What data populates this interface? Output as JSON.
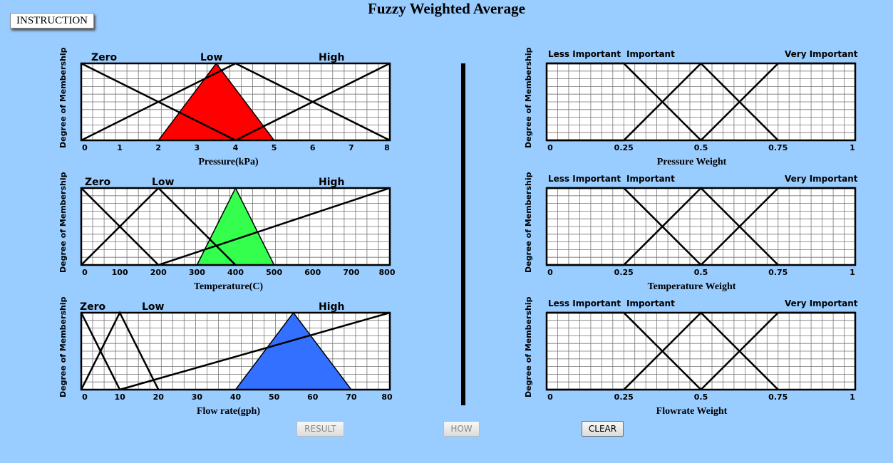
{
  "title": "Fuzzy Weighted Average",
  "instruction_label": "INSTRUCTION",
  "ylabel": "Degree of Membership",
  "buttons": {
    "result": "RESULT",
    "how": "HOW",
    "clear": "CLEAR"
  },
  "colors": {
    "background": "#99ccff",
    "pressure": "#ff0000",
    "temperature": "#33ff4c",
    "flow": "#3370ff"
  },
  "inputs": [
    {
      "xlabel": "Pressure(kPa)",
      "sets": [
        "Zero",
        "Low",
        "High"
      ],
      "ticks": [
        "0",
        "1",
        "2",
        "3",
        "4",
        "5",
        "6",
        "7",
        "8"
      ],
      "fill": "#ff0000"
    },
    {
      "xlabel": "Temperature(C)",
      "sets": [
        "Zero",
        "Low",
        "High"
      ],
      "ticks": [
        "0",
        "100",
        "200",
        "300",
        "400",
        "500",
        "600",
        "700",
        "800"
      ],
      "fill": "#33ff4c"
    },
    {
      "xlabel": "Flow rate(gph)",
      "sets": [
        "Zero",
        "Low",
        "High"
      ],
      "ticks": [
        "0",
        "10",
        "20",
        "30",
        "40",
        "50",
        "60",
        "70",
        "80"
      ],
      "fill": "#3370ff"
    }
  ],
  "weights": [
    {
      "xlabel": "Pressure Weight",
      "sets": [
        "Less Important",
        "Important",
        "Very Important"
      ],
      "ticks": [
        "0",
        "0.25",
        "0.5",
        "0.75",
        "1"
      ]
    },
    {
      "xlabel": "Temperature Weight",
      "sets": [
        "Less Important",
        "Important",
        "Very Important"
      ],
      "ticks": [
        "0",
        "0.25",
        "0.5",
        "0.75",
        "1"
      ]
    },
    {
      "xlabel": "Flowrate Weight",
      "sets": [
        "Less Important",
        "Important",
        "Very Important"
      ],
      "ticks": [
        "0",
        "0.25",
        "0.5",
        "0.75",
        "1"
      ]
    }
  ],
  "chart_data": [
    {
      "type": "line",
      "xlabel": "Pressure(kPa)",
      "ylabel": "Degree of Membership",
      "xlim": [
        0,
        8
      ],
      "ylim": [
        0,
        1
      ],
      "grid": true,
      "series": [
        {
          "name": "Zero",
          "x": [
            0,
            4
          ],
          "y": [
            1,
            0
          ]
        },
        {
          "name": "Low",
          "x": [
            0,
            4,
            8
          ],
          "y": [
            0,
            1,
            0
          ]
        },
        {
          "name": "High",
          "x": [
            4,
            8
          ],
          "y": [
            0,
            1
          ]
        }
      ],
      "input_triangle": {
        "x": [
          2,
          3.5,
          5
        ],
        "y": [
          0,
          1,
          0
        ]
      }
    },
    {
      "type": "line",
      "xlabel": "Temperature(C)",
      "ylabel": "Degree of Membership",
      "xlim": [
        0,
        800
      ],
      "ylim": [
        0,
        1
      ],
      "grid": true,
      "series": [
        {
          "name": "Zero",
          "x": [
            0,
            200
          ],
          "y": [
            1,
            0
          ]
        },
        {
          "name": "Low",
          "x": [
            0,
            200,
            400
          ],
          "y": [
            0,
            1,
            0
          ]
        },
        {
          "name": "High",
          "x": [
            200,
            800
          ],
          "y": [
            0,
            1
          ]
        }
      ],
      "input_triangle": {
        "x": [
          300,
          400,
          500
        ],
        "y": [
          0,
          1,
          0
        ]
      }
    },
    {
      "type": "line",
      "xlabel": "Flow rate(gph)",
      "ylabel": "Degree of Membership",
      "xlim": [
        0,
        80
      ],
      "ylim": [
        0,
        1
      ],
      "grid": true,
      "series": [
        {
          "name": "Zero",
          "x": [
            0,
            10
          ],
          "y": [
            1,
            0
          ]
        },
        {
          "name": "Low",
          "x": [
            0,
            10,
            20
          ],
          "y": [
            0,
            1,
            0
          ]
        },
        {
          "name": "High",
          "x": [
            10,
            80
          ],
          "y": [
            0,
            1
          ]
        }
      ],
      "input_triangle": {
        "x": [
          40,
          55,
          70
        ],
        "y": [
          0,
          1,
          0
        ]
      }
    },
    {
      "type": "line",
      "xlabel": "Pressure Weight",
      "ylabel": "Degree of Membership",
      "xlim": [
        0,
        1
      ],
      "ylim": [
        0,
        1
      ],
      "grid": true,
      "series": [
        {
          "name": "Less Important",
          "x": [
            0,
            0.25,
            0.5
          ],
          "y": [
            1,
            1,
            0
          ]
        },
        {
          "name": "Important",
          "x": [
            0,
            0.25,
            0.5,
            0.75
          ],
          "y": [
            0,
            0,
            1,
            0
          ]
        },
        {
          "name": "Very Important",
          "x": [
            0.5,
            0.75,
            1
          ],
          "y": [
            0,
            1,
            1
          ]
        }
      ]
    },
    {
      "type": "line",
      "xlabel": "Temperature Weight",
      "ylabel": "Degree of Membership",
      "xlim": [
        0,
        1
      ],
      "ylim": [
        0,
        1
      ],
      "grid": true,
      "series": [
        {
          "name": "Less Important",
          "x": [
            0,
            0.25,
            0.5
          ],
          "y": [
            1,
            1,
            0
          ]
        },
        {
          "name": "Important",
          "x": [
            0,
            0.25,
            0.5,
            0.75
          ],
          "y": [
            0,
            0,
            1,
            0
          ]
        },
        {
          "name": "Very Important",
          "x": [
            0.5,
            0.75,
            1
          ],
          "y": [
            0,
            1,
            1
          ]
        }
      ]
    },
    {
      "type": "line",
      "xlabel": "Flowrate Weight",
      "ylabel": "Degree of Membership",
      "xlim": [
        0,
        1
      ],
      "ylim": [
        0,
        1
      ],
      "grid": true,
      "series": [
        {
          "name": "Less Important",
          "x": [
            0,
            0.25,
            0.5
          ],
          "y": [
            1,
            1,
            0
          ]
        },
        {
          "name": "Important",
          "x": [
            0,
            0.25,
            0.5,
            0.75
          ],
          "y": [
            0,
            0,
            1,
            0
          ]
        },
        {
          "name": "Very Important",
          "x": [
            0.5,
            0.75,
            1
          ],
          "y": [
            0,
            1,
            1
          ]
        }
      ]
    }
  ]
}
